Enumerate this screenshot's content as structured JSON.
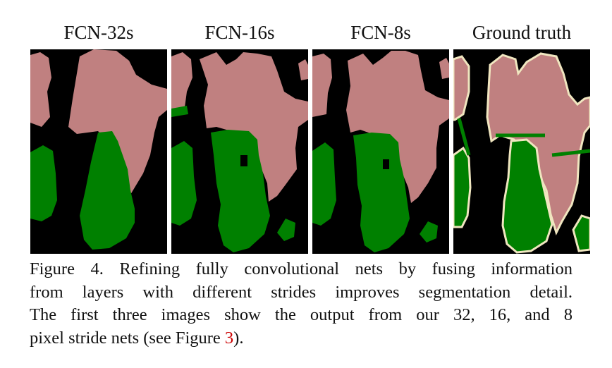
{
  "panels": [
    {
      "title": "FCN-32s"
    },
    {
      "title": "FCN-16s"
    },
    {
      "title": "FCN-8s"
    },
    {
      "title": "Ground truth"
    }
  ],
  "colors": {
    "background": "#000000",
    "person": "#c08080",
    "bicycle": "#008000",
    "boundary": "#f0e6c0"
  },
  "caption": {
    "line1": "Figure 4.  Refining fully convolutional nets by fusing information",
    "line2": "from layers with different strides improves segmentation detail.",
    "line3": "The first three images show the output from our 32, 16, and 8",
    "line4_pre": "pixel stride nets (see Figure ",
    "line4_ref": "3",
    "line4_post": ")."
  }
}
